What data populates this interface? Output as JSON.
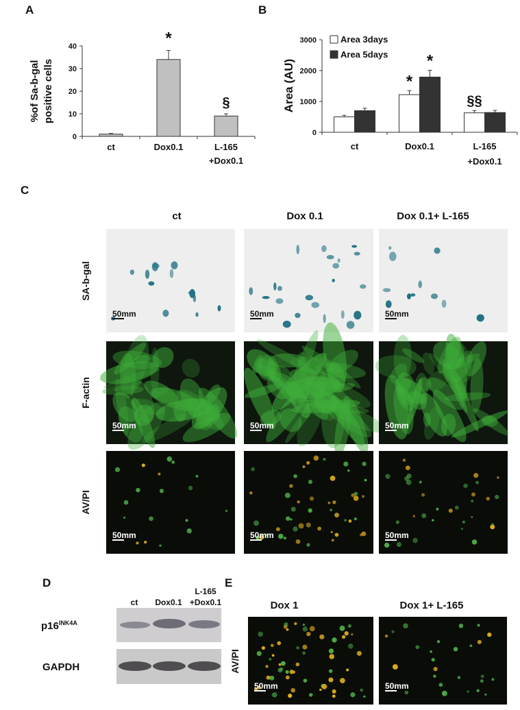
{
  "panel_labels": {
    "a": "A",
    "b": "B",
    "c": "C",
    "d": "D",
    "e": "E"
  },
  "chart_data": [
    {
      "type": "bar",
      "panel": "A",
      "ylabel_line1": "%of Sa-b-gal",
      "ylabel_line2": "positive cells",
      "categories": [
        [
          "ct"
        ],
        [
          "Dox0.1"
        ],
        [
          "L-165",
          "+Dox0.1"
        ]
      ],
      "yticks": [
        0,
        10,
        20,
        30,
        40
      ],
      "ylim": [
        0,
        40
      ],
      "series": [
        {
          "values": [
            1,
            34,
            9
          ],
          "errors": [
            0.3,
            4,
            1
          ],
          "color": "#c0c0c0"
        }
      ],
      "annotations": [
        "",
        "*",
        "§"
      ]
    },
    {
      "type": "bar",
      "panel": "B",
      "ylabel": "Area (AU)",
      "categories": [
        [
          "ct"
        ],
        [
          "Dox0.1"
        ],
        [
          "L-165",
          "+Dox0.1"
        ]
      ],
      "yticks": [
        0,
        1000,
        2000,
        3000
      ],
      "ylim": [
        0,
        3000
      ],
      "legend_position": "top-left",
      "series": [
        {
          "name": "Area 3days",
          "values": [
            500,
            1220,
            630
          ],
          "errors": [
            50,
            130,
            70
          ],
          "color": "#ffffff"
        },
        {
          "name": "Area 5days",
          "values": [
            700,
            1790,
            640
          ],
          "errors": [
            80,
            220,
            70
          ],
          "color": "#333333"
        }
      ],
      "annotations": [
        [
          "",
          ""
        ],
        [
          "*",
          "*"
        ],
        [
          "§§",
          ""
        ]
      ]
    }
  ],
  "panel_c": {
    "columns": [
      "ct",
      "Dox 0.1",
      "Dox 0.1+ L-165"
    ],
    "rows": [
      {
        "label": "SA-b-gal",
        "scale": "50mm"
      },
      {
        "label": "F-actin",
        "scale": "50mm"
      },
      {
        "label": "AV/PI",
        "scale": "50mm"
      }
    ]
  },
  "panel_d": {
    "columns": [
      [
        "ct"
      ],
      [
        "Dox0.1"
      ],
      [
        "L-165",
        "+Dox0.1"
      ]
    ],
    "bands": [
      {
        "label": "p16",
        "superscript": "INK4A"
      },
      {
        "label": "GAPDH"
      }
    ]
  },
  "panel_e": {
    "columns": [
      "Dox 1",
      "Dox 1+ L-165"
    ],
    "row_label": "AV/PI",
    "scale": "50mm"
  }
}
